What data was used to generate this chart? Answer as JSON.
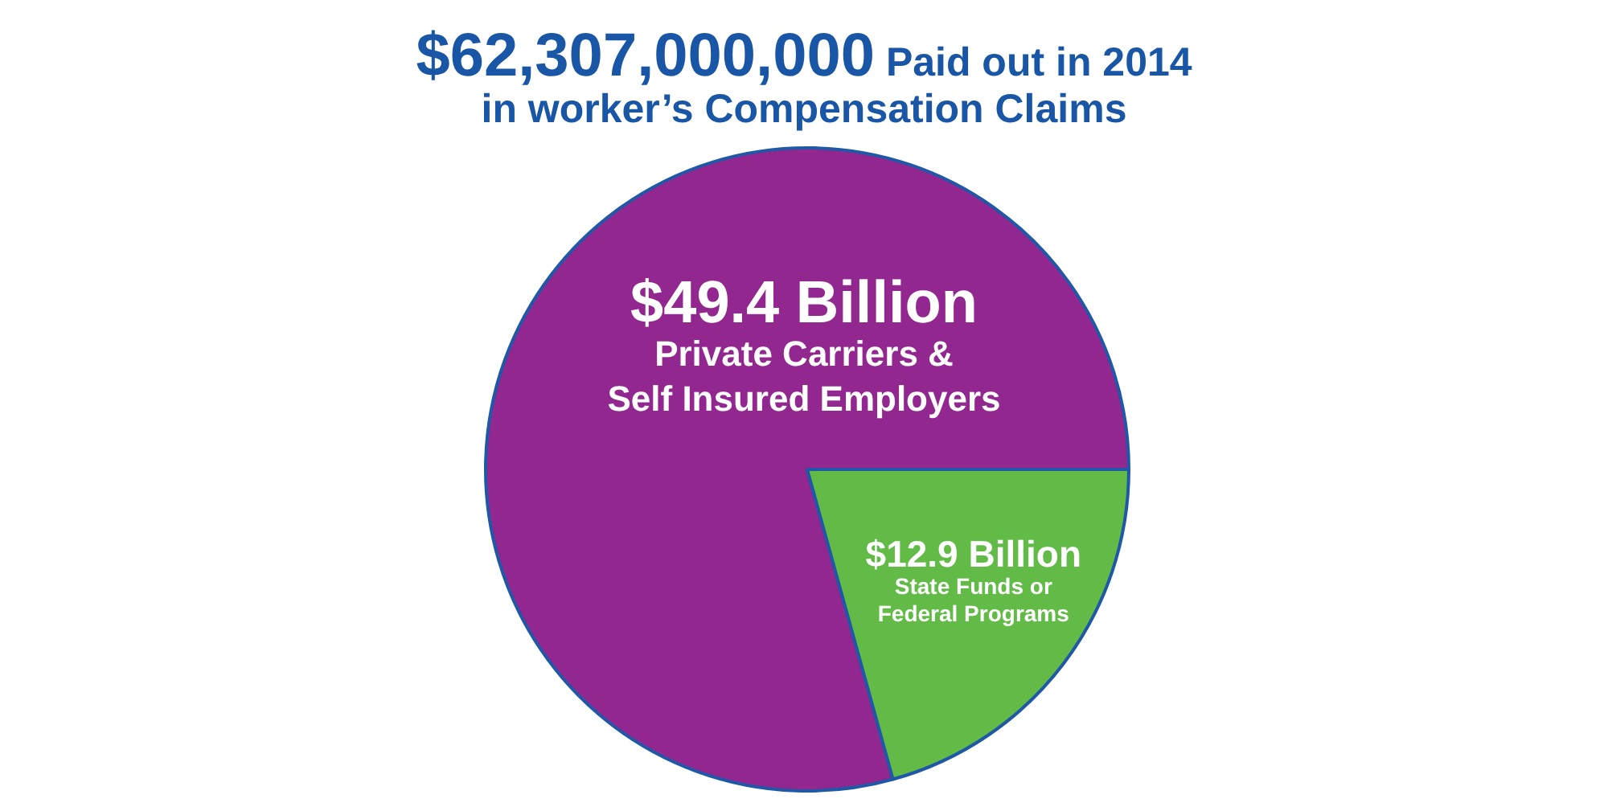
{
  "chart_data": {
    "type": "pie",
    "title": "$62,307,000,000 Paid out in 2014",
    "subtitle": "in worker’s Compensation Claims",
    "categories": [
      "Private Carriers & Self Insured Employers",
      "State Funds or Federal Programs"
    ],
    "values": [
      49.4,
      12.9
    ],
    "colors": [
      "#92278f",
      "#62bb46"
    ],
    "value_labels": [
      "$49.4 Billion",
      "$12.9 Billion"
    ]
  }
}
